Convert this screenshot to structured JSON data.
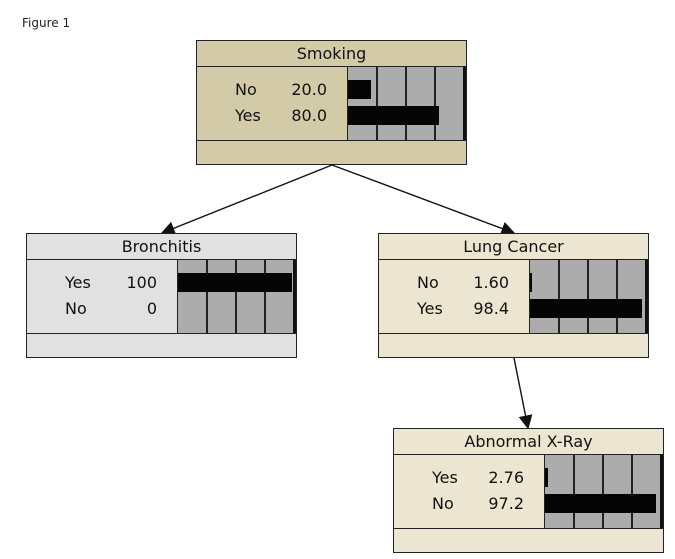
{
  "figure_label": "Figure 1",
  "colors": {
    "smoking": "#d3cba7",
    "bronchitis": "#e1e1e1",
    "lung_cancer": "#ebe5d1",
    "xray": "#ebe5d1",
    "bar": "#050505",
    "bar_bg": "#acacac"
  },
  "nodes": [
    {
      "id": "smoking",
      "title": "Smoking",
      "states": [
        {
          "label": "No",
          "value": "20.0",
          "pct": 20.0
        },
        {
          "label": "Yes",
          "value": "80.0",
          "pct": 80.0
        }
      ]
    },
    {
      "id": "bronchitis",
      "title": "Bronchitis",
      "states": [
        {
          "label": "Yes",
          "value": "100",
          "pct": 100
        },
        {
          "label": "No",
          "value": "0",
          "pct": 0
        }
      ]
    },
    {
      "id": "lung_cancer",
      "title": "Lung Cancer",
      "states": [
        {
          "label": "No",
          "value": "1.60",
          "pct": 1.6
        },
        {
          "label": "Yes",
          "value": "98.4",
          "pct": 98.4
        }
      ]
    },
    {
      "id": "xray",
      "title": "Abnormal X-Ray",
      "states": [
        {
          "label": "Yes",
          "value": "2.76",
          "pct": 2.76
        },
        {
          "label": "No",
          "value": "97.2",
          "pct": 97.2
        }
      ]
    }
  ],
  "edges": [
    {
      "from": "smoking",
      "to": "bronchitis"
    },
    {
      "from": "smoking",
      "to": "lung_cancer"
    },
    {
      "from": "lung_cancer",
      "to": "xray"
    }
  ]
}
